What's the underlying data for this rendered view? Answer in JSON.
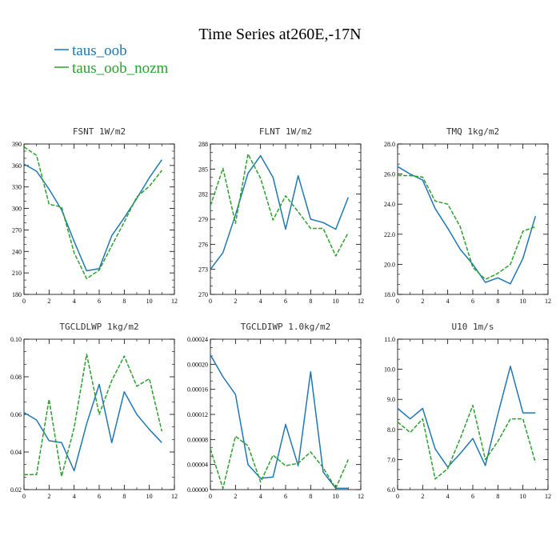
{
  "title": "Time Series at260E,-17N",
  "legend": [
    {
      "name": "taus_oob",
      "color": "#1f77b4",
      "dash": "solid"
    },
    {
      "name": "taus_oob_nozm",
      "color": "#2ca02c",
      "dash": "dashed"
    }
  ],
  "chart_data": [
    {
      "type": "line",
      "title": "FSNT   1W/m2",
      "xlim": [
        0,
        12
      ],
      "xticks": [
        "0",
        "2",
        "4",
        "6",
        "8",
        "10",
        "12"
      ],
      "ylim": [
        180,
        390
      ],
      "yticks": [
        "180",
        "210",
        "240",
        "270",
        "300",
        "330",
        "360",
        "390"
      ],
      "x": [
        0,
        1,
        2,
        3,
        4,
        5,
        6,
        7,
        8,
        9,
        10,
        11
      ],
      "series": [
        {
          "name": "taus_oob",
          "values": [
            362,
            352,
            327,
            298,
            254,
            213,
            216,
            262,
            287,
            314,
            343,
            368
          ]
        },
        {
          "name": "taus_oob_nozm",
          "values": [
            386,
            374,
            306,
            302,
            238,
            202,
            214,
            248,
            281,
            316,
            331,
            353
          ]
        }
      ]
    },
    {
      "type": "line",
      "title": "FLNT   1W/m2",
      "xlim": [
        0,
        12
      ],
      "xticks": [
        "0",
        "2",
        "4",
        "6",
        "8",
        "10",
        "12"
      ],
      "ylim": [
        270,
        288
      ],
      "yticks": [
        "270",
        "273",
        "276",
        "279",
        "282",
        "285",
        "288"
      ],
      "x": [
        0,
        1,
        2,
        3,
        4,
        5,
        6,
        7,
        8,
        9,
        10,
        11
      ],
      "series": [
        {
          "name": "taus_oob",
          "values": [
            273.0,
            275.0,
            279.5,
            284.5,
            286.6,
            284.0,
            277.8,
            284.2,
            279.0,
            278.6,
            277.8,
            281.6
          ]
        },
        {
          "name": "taus_oob_nozm",
          "values": [
            280.6,
            285.1,
            278.5,
            286.8,
            283.9,
            278.9,
            281.8,
            279.9,
            277.9,
            277.9,
            274.6,
            277.4
          ]
        }
      ]
    },
    {
      "type": "line",
      "title": "TMQ   1kg/m2",
      "xlim": [
        0,
        12
      ],
      "xticks": [
        "0",
        "2",
        "4",
        "6",
        "8",
        "10",
        "12"
      ],
      "ylim": [
        18.0,
        28.0
      ],
      "yticks": [
        "18.0",
        "20.0",
        "22.0",
        "24.0",
        "26.0",
        "28.0"
      ],
      "x": [
        0,
        1,
        2,
        3,
        4,
        5,
        6,
        7,
        8,
        9,
        10,
        11
      ],
      "series": [
        {
          "name": "taus_oob",
          "values": [
            26.5,
            26.0,
            25.6,
            23.7,
            22.4,
            21.0,
            20.0,
            18.8,
            19.1,
            18.7,
            20.4,
            23.2
          ]
        },
        {
          "name": "taus_oob_nozm",
          "values": [
            25.9,
            25.9,
            25.8,
            24.2,
            24.0,
            22.5,
            19.8,
            19.0,
            19.4,
            20.0,
            22.2,
            22.5
          ]
        }
      ]
    },
    {
      "type": "line",
      "title": "TGCLDLWP   1kg/m2",
      "xlim": [
        0,
        12
      ],
      "xticks": [
        "0",
        "2",
        "4",
        "6",
        "8",
        "10",
        "12"
      ],
      "ylim": [
        0.02,
        0.1
      ],
      "yticks": [
        "0.02",
        "0.04",
        "0.06",
        "0.08",
        "0.10"
      ],
      "x": [
        0,
        1,
        2,
        3,
        4,
        5,
        6,
        7,
        8,
        9,
        10,
        11
      ],
      "series": [
        {
          "name": "taus_oob",
          "values": [
            0.061,
            0.057,
            0.046,
            0.045,
            0.03,
            0.055,
            0.076,
            0.045,
            0.072,
            0.06,
            0.052,
            0.045
          ]
        },
        {
          "name": "taus_oob_nozm",
          "values": [
            0.028,
            0.028,
            0.068,
            0.027,
            0.053,
            0.092,
            0.06,
            0.078,
            0.091,
            0.075,
            0.079,
            0.051
          ]
        }
      ]
    },
    {
      "type": "line",
      "title": "TGCLDIWP   1.0kg/m2",
      "xlim": [
        0,
        12
      ],
      "xticks": [
        "0",
        "2",
        "4",
        "6",
        "8",
        "10",
        "12"
      ],
      "ylim": [
        0,
        0.00024
      ],
      "yticks": [
        "0.00000",
        "0.00004",
        "0.00008",
        "0.00012",
        "0.00016",
        "0.00020",
        "0.00024"
      ],
      "x": [
        0,
        1,
        2,
        3,
        4,
        5,
        6,
        7,
        8,
        9,
        10,
        11
      ],
      "series": [
        {
          "name": "taus_oob",
          "values": [
            0.000215,
            0.00018,
            0.000152,
            4e-05,
            1.8e-05,
            2e-05,
            0.000104,
            3.8e-05,
            0.000188,
            2.8e-05,
            2e-06,
            2e-06
          ]
        },
        {
          "name": "taus_oob_nozm",
          "values": [
            6.5e-05,
            2e-06,
            8.5e-05,
            7e-05,
            1.2e-05,
            5.5e-05,
            3.8e-05,
            4.2e-05,
            6e-05,
            3.5e-05,
            2e-06,
            4.8e-05
          ]
        }
      ]
    },
    {
      "type": "line",
      "title": "U10   1m/s",
      "xlim": [
        0,
        12
      ],
      "xticks": [
        "0",
        "2",
        "4",
        "6",
        "8",
        "10",
        "12"
      ],
      "ylim": [
        6.0,
        11.0
      ],
      "yticks": [
        "6.0",
        "7.0",
        "8.0",
        "9.0",
        "10.0",
        "11.0"
      ],
      "x": [
        0,
        1,
        2,
        3,
        4,
        5,
        6,
        7,
        8,
        9,
        10,
        11
      ],
      "series": [
        {
          "name": "taus_oob",
          "values": [
            8.7,
            8.35,
            8.7,
            7.35,
            6.75,
            7.2,
            7.7,
            6.8,
            8.5,
            10.1,
            8.55,
            8.55
          ]
        },
        {
          "name": "taus_oob_nozm",
          "values": [
            8.25,
            7.9,
            8.35,
            6.35,
            6.7,
            7.7,
            8.8,
            7.0,
            7.6,
            8.35,
            8.35,
            6.9
          ]
        }
      ]
    }
  ]
}
